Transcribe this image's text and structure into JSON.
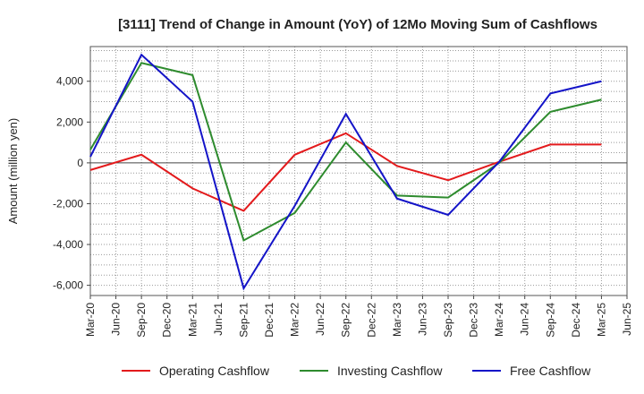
{
  "chart_data": {
    "type": "line",
    "title": "[3111]  Trend of Change in Amount (YoY) of 12Mo Moving Sum of Cashflows",
    "xlabel": "",
    "ylabel": "Amount (million yen)",
    "categories": [
      "Mar-20",
      "Jun-20",
      "Sep-20",
      "Dec-20",
      "Mar-21",
      "Jun-21",
      "Sep-21",
      "Dec-21",
      "Mar-22",
      "Jun-22",
      "Sep-22",
      "Dec-22",
      "Mar-23",
      "Jun-23",
      "Sep-23",
      "Dec-23",
      "Mar-24",
      "Jun-24",
      "Sep-24",
      "Dec-24",
      "Mar-25",
      "Jun-25"
    ],
    "ylim": [
      -6500,
      5700
    ],
    "yticks": [
      4000,
      2000,
      0,
      -2000,
      -4000,
      -6000
    ],
    "ytick_labels": [
      "4,000",
      "2,000",
      "0",
      "-2,000",
      "-4,000",
      "-6,000"
    ],
    "grid": true,
    "legend_position": "bottom",
    "series": [
      {
        "name": "Operating Cashflow",
        "color": "#e31a1c",
        "values": [
          -350,
          null,
          400,
          null,
          -1250,
          null,
          -2350,
          null,
          400,
          null,
          1450,
          null,
          -150,
          null,
          -850,
          null,
          50,
          null,
          900,
          null,
          900,
          null
        ]
      },
      {
        "name": "Investing Cashflow",
        "color": "#2e8b2e",
        "values": [
          650,
          null,
          4900,
          null,
          4300,
          null,
          -3800,
          null,
          -2450,
          null,
          1000,
          null,
          -1600,
          null,
          -1700,
          null,
          0,
          null,
          2500,
          null,
          3100,
          null
        ]
      },
      {
        "name": "Free Cashflow",
        "color": "#1414c8",
        "values": [
          300,
          null,
          5300,
          null,
          3000,
          null,
          -6150,
          null,
          -2100,
          null,
          2400,
          null,
          -1750,
          null,
          -2550,
          null,
          50,
          null,
          3400,
          null,
          4000,
          null
        ]
      }
    ]
  }
}
